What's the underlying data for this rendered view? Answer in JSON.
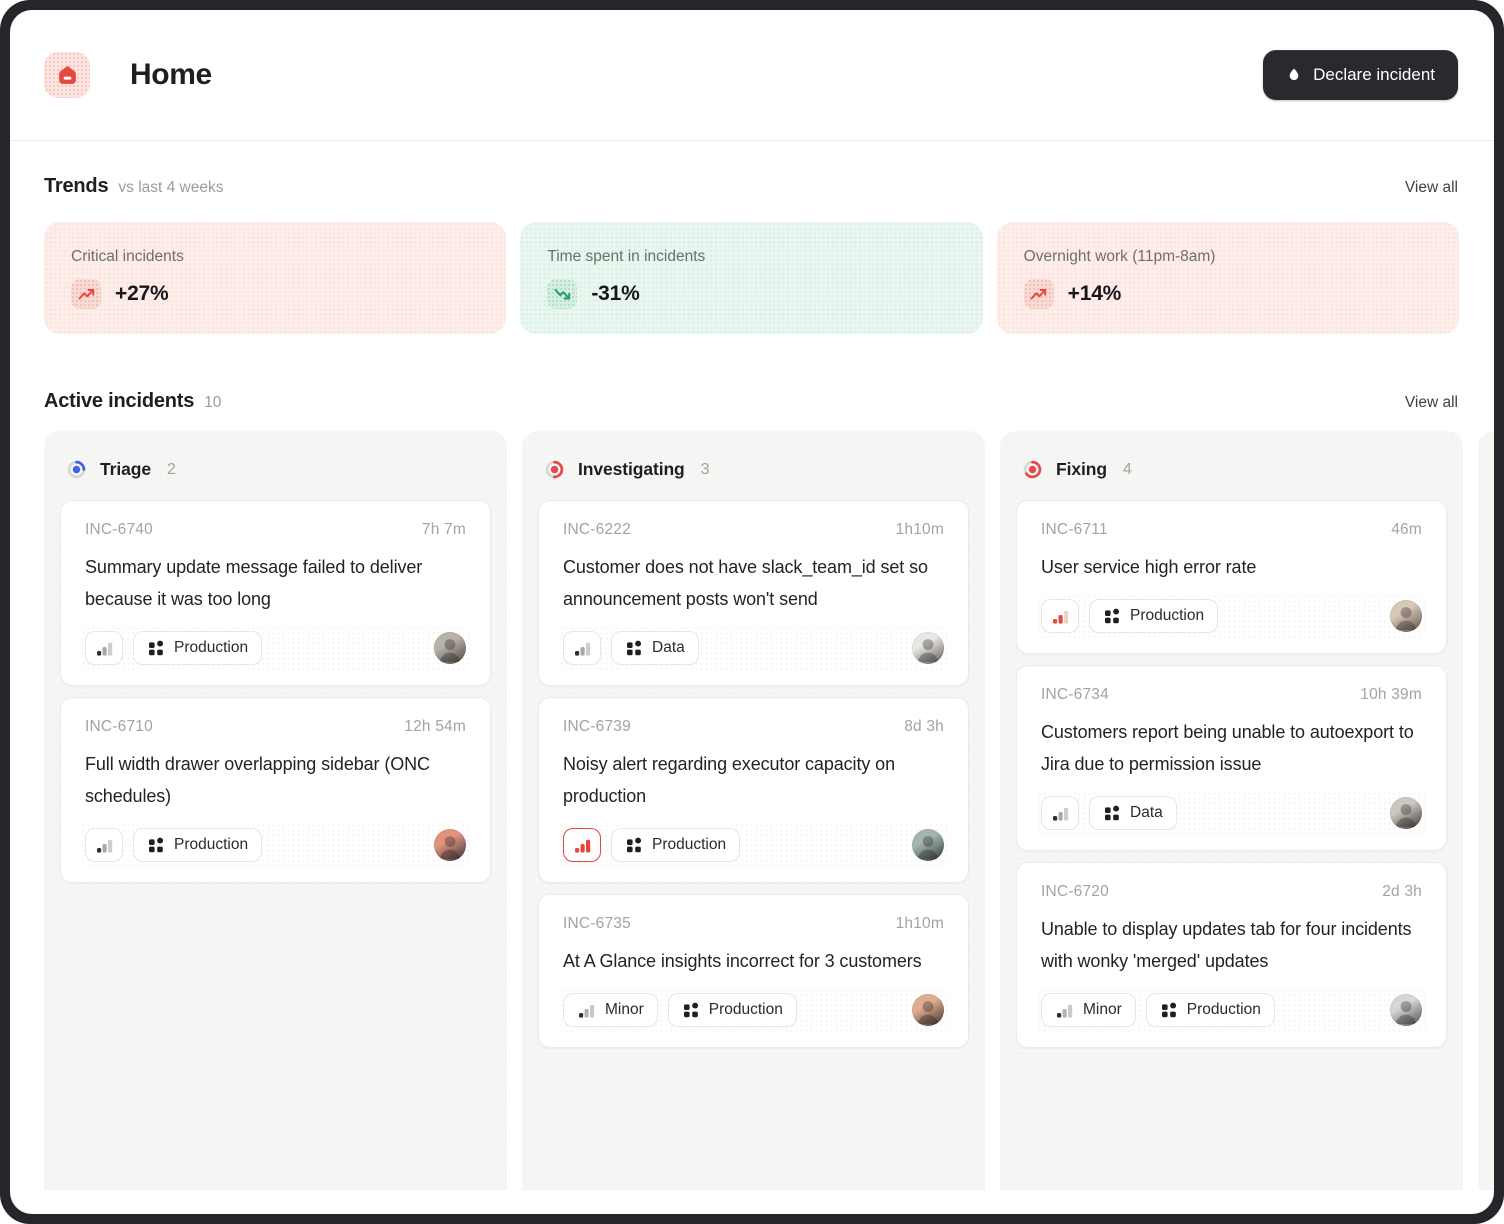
{
  "theme": {
    "frame": "#26262a",
    "accent_red": "#e5483f",
    "status_red": "#e5484d",
    "status_blue": "#3d63e6",
    "good_green": "#259b72"
  },
  "header": {
    "title": "Home",
    "declare_button_label": "Declare incident"
  },
  "trends": {
    "title": "Trends",
    "subtitle": "vs last 4 weeks",
    "view_all": "View all",
    "cards": [
      {
        "label": "Critical incidents",
        "value": "+27%",
        "direction": "up",
        "card_bg": "#fdeeea",
        "dot": "rgba(220,90,75,.09)",
        "chip_bg": "#f9dbd5",
        "chip_dot": "rgba(215,70,55,.22)",
        "arrow_color": "#e5483f"
      },
      {
        "label": "Time spent in incidents",
        "value": "-31%",
        "direction": "down",
        "card_bg": "#eaf7f1",
        "dot": "rgba(45,150,110,.09)",
        "chip_bg": "#d5efe3",
        "chip_dot": "rgba(35,140,100,.22)",
        "arrow_color": "#259b72"
      },
      {
        "label": "Overnight work (11pm-8am)",
        "value": "+14%",
        "direction": "up",
        "card_bg": "#fdeeea",
        "dot": "rgba(220,90,75,.09)",
        "chip_bg": "#f9dbd5",
        "chip_dot": "rgba(215,70,55,.22)",
        "arrow_color": "#e5483f"
      }
    ]
  },
  "board": {
    "title": "Active incidents",
    "count": "10",
    "view_all": "View all",
    "columns": [
      {
        "name": "Triage",
        "count": "2",
        "status_color": "#3d63e6",
        "progress": 0.25,
        "partial": false,
        "cards": [
          {
            "id": "INC-6740",
            "duration": "7h 7m",
            "title": "Summary update message failed to deliver because it was too long",
            "severity": "default",
            "severity_label": "",
            "team": "Production",
            "avatar": [
              "#b9b2aa",
              "#4a443f"
            ]
          },
          {
            "id": "INC-6710",
            "duration": "12h 54m",
            "title": "Full width drawer overlapping sidebar (ONC schedules)",
            "severity": "default",
            "severity_label": "",
            "team": "Production",
            "avatar": [
              "#e2937e",
              "#33313a"
            ]
          }
        ]
      },
      {
        "name": "Investigating",
        "count": "3",
        "status_color": "#e5484d",
        "progress": 0.5,
        "partial": false,
        "cards": [
          {
            "id": "INC-6222",
            "duration": "1h10m",
            "title": "Customer does not have slack_team_id set so announcement posts won't send",
            "severity": "default",
            "severity_label": "",
            "team": "Data",
            "avatar": [
              "#e9e7e3",
              "#5a5755"
            ]
          },
          {
            "id": "INC-6739",
            "duration": "8d 3h",
            "title": "Noisy alert regarding executor capacity on production",
            "severity": "critical",
            "severity_label": "",
            "team": "Production",
            "avatar": [
              "#a3b6ae",
              "#2e3833"
            ]
          },
          {
            "id": "INC-6735",
            "duration": "1h10m",
            "title": "At A Glance insights incorrect for 3 customers",
            "severity": "minor",
            "severity_label": "Minor",
            "team": "Production",
            "avatar": [
              "#dfae92",
              "#392e29"
            ]
          }
        ]
      },
      {
        "name": "Fixing",
        "count": "4",
        "status_color": "#e5484d",
        "progress": 0.65,
        "partial": false,
        "cards": [
          {
            "id": "INC-6711",
            "duration": "46m",
            "title": "User service high error rate",
            "severity": "major",
            "severity_label": "",
            "team": "Production",
            "avatar": [
              "#d8c8b6",
              "#56504a"
            ]
          },
          {
            "id": "INC-6734",
            "duration": "10h 39m",
            "title": "Customers report being unable to autoexport to Jira due to permission issue",
            "severity": "default",
            "severity_label": "",
            "team": "Data",
            "avatar": [
              "#cdc7c1",
              "#3a3633"
            ]
          },
          {
            "id": "INC-6720",
            "duration": "2d 3h",
            "title": "Unable to display updates tab for four incidents with wonky 'merged' updates",
            "severity": "minor",
            "severity_label": "Minor",
            "team": "Production",
            "avatar": [
              "#d6d6d4",
              "#4d4d4b"
            ]
          }
        ]
      },
      {
        "name": "",
        "count": "",
        "status_color": "#d9d9d6",
        "progress": 0,
        "partial": true,
        "cards": []
      }
    ]
  },
  "severity_styles": {
    "default": {
      "bars": [
        "#2f2f2a",
        "#a9a9a4",
        "#cdcdc9"
      ],
      "critical_border": false
    },
    "minor": {
      "bars": [
        "#2f2f2a",
        "#b3b3ae",
        "#c9c9c5"
      ],
      "critical_border": false
    },
    "major": {
      "bars": [
        "#e5483f",
        "#e5483f",
        "#f0cdc7"
      ],
      "critical_border": false
    },
    "critical": {
      "bars": [
        "#e5483f",
        "#e5483f",
        "#e5483f"
      ],
      "critical_border": true
    }
  }
}
